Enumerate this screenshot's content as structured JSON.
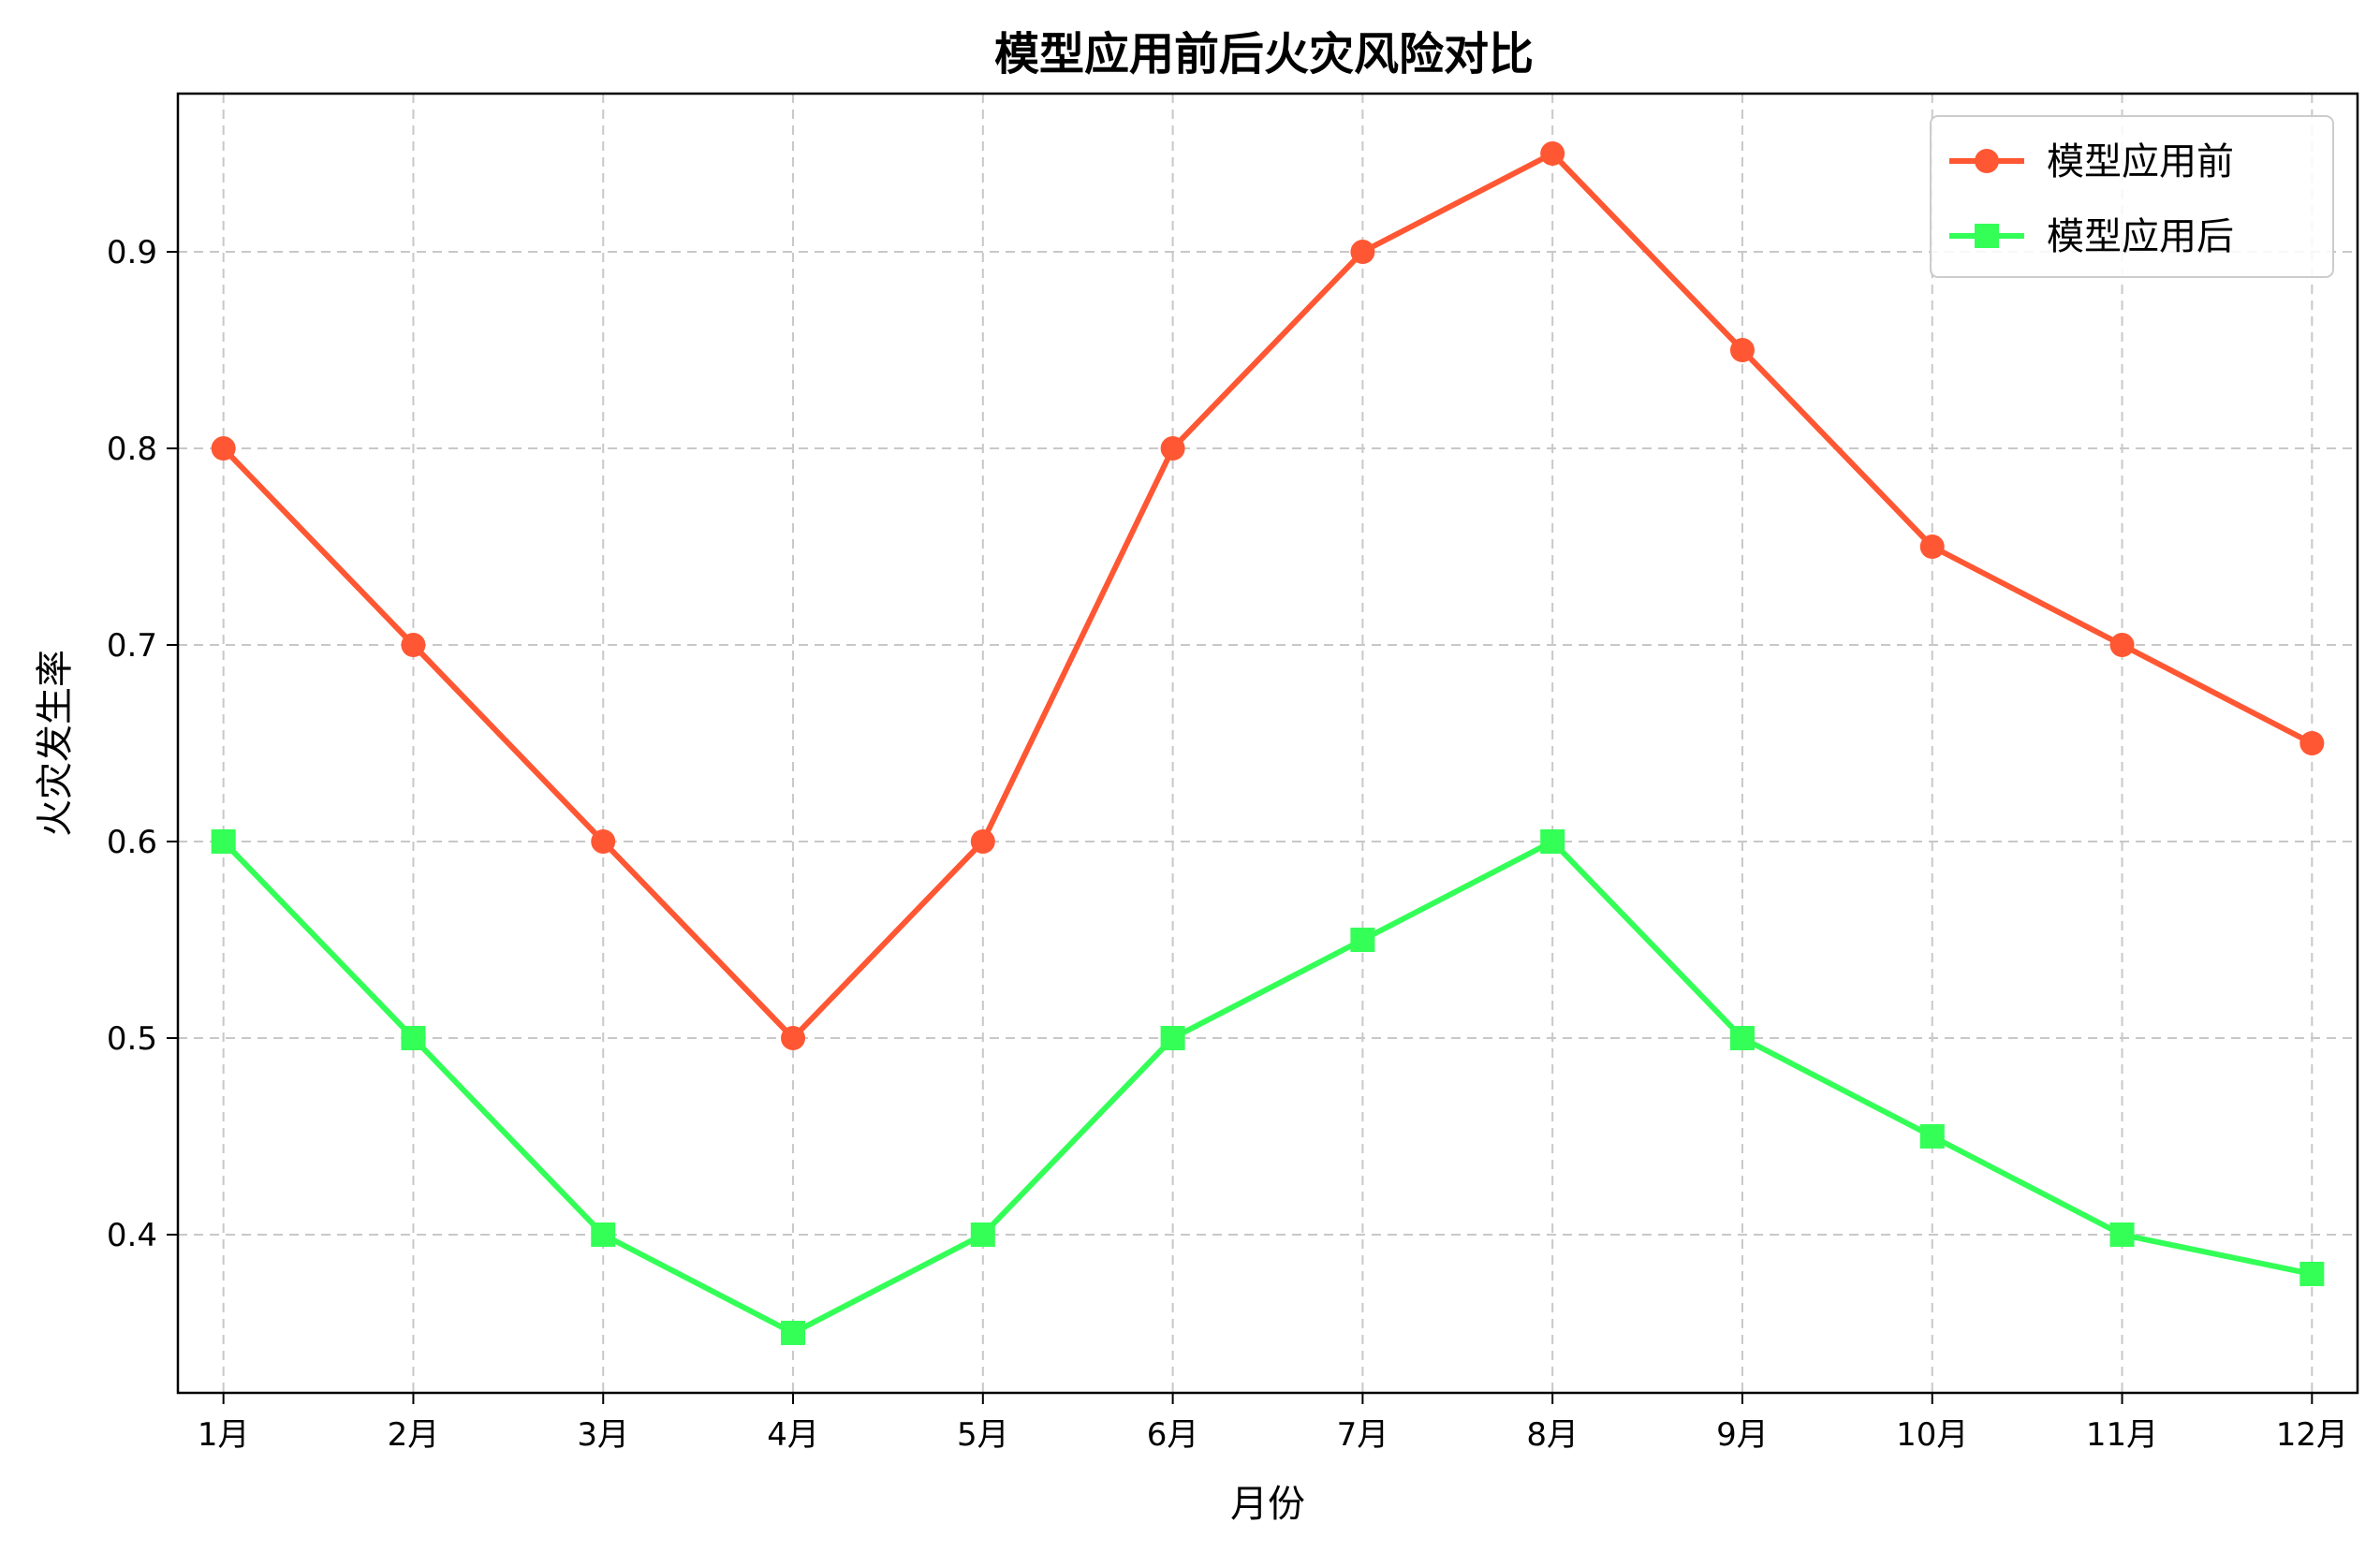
{
  "chart_data": {
    "type": "line",
    "title": "模型应用前后火灾风险对比",
    "xlabel": "月份",
    "ylabel": "火灾发生率",
    "categories": [
      "1月",
      "2月",
      "3月",
      "4月",
      "5月",
      "6月",
      "7月",
      "8月",
      "9月",
      "10月",
      "11月",
      "12月"
    ],
    "series": [
      {
        "name": "模型应用前",
        "marker": "circle",
        "color": "#FF5733",
        "values": [
          0.8,
          0.7,
          0.6,
          0.5,
          0.6,
          0.8,
          0.9,
          0.95,
          0.85,
          0.75,
          0.7,
          0.65
        ]
      },
      {
        "name": "模型应用后",
        "marker": "square",
        "color": "#33FF57",
        "values": [
          0.6,
          0.5,
          0.4,
          0.35,
          0.4,
          0.5,
          0.55,
          0.6,
          0.5,
          0.45,
          0.4,
          0.38
        ]
      }
    ],
    "yticks": [
      0.4,
      0.5,
      0.6,
      0.7,
      0.8,
      0.9
    ],
    "ytick_labels": [
      "0.4",
      "0.5",
      "0.6",
      "0.7",
      "0.8",
      "0.9"
    ],
    "ylim": [
      0.3195,
      0.9805
    ],
    "grid": true,
    "legend_position": "top-right"
  }
}
